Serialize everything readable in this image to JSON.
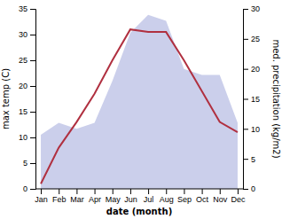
{
  "chart_data": {
    "type": "line",
    "xlabel": "date (month)",
    "ylabel": "max temp (C)",
    "y2label": "med. precipitation (kg/m2)",
    "categories": [
      "Jan",
      "Feb",
      "Mar",
      "Apr",
      "May",
      "Jun",
      "Jul",
      "Aug",
      "Sep",
      "Oct",
      "Nov",
      "Dec"
    ],
    "series": [
      {
        "type": "line",
        "color": "#b03040",
        "values": [
          1,
          8,
          13,
          18.5,
          25,
          31,
          30.5,
          30.5,
          25,
          19,
          13,
          11
        ]
      },
      {
        "type": "area",
        "axis": "y2",
        "color": "#c5cae9",
        "values": [
          9,
          11,
          10,
          11,
          18,
          26,
          29,
          28,
          20,
          19,
          19,
          11
        ]
      }
    ],
    "ylim": [
      0,
      35
    ],
    "yticks": [
      0,
      5,
      10,
      15,
      20,
      25,
      30,
      35
    ],
    "y2lim": [
      0,
      30
    ],
    "y2ticks": [
      0,
      5,
      10,
      15,
      20,
      25,
      30
    ],
    "grid": false
  }
}
